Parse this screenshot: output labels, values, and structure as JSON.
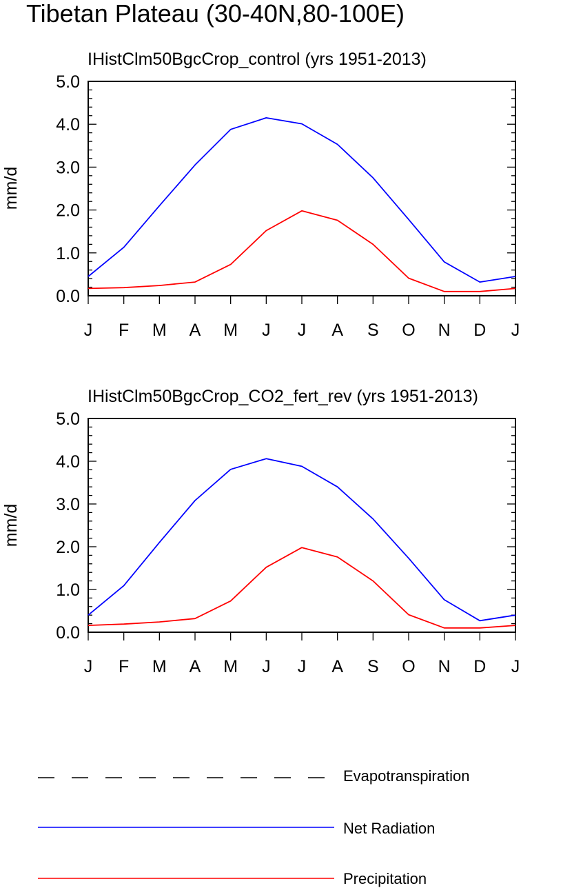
{
  "figure": {
    "title": "Tibetan Plateau (30-40N,80-100E)"
  },
  "legend": [
    {
      "label": "Evapotranspiration",
      "color": "#000000",
      "style": "dashed"
    },
    {
      "label": "Net Radiation",
      "color": "#0000ff",
      "style": "solid"
    },
    {
      "label": "Precipitation",
      "color": "#ff0000",
      "style": "solid"
    }
  ],
  "chart_data": [
    {
      "type": "line",
      "title": "IHistClm50BgcCrop_control (yrs 1951-2013)",
      "ylabel": "mm/d",
      "xlabel": "",
      "ylim": [
        0,
        5
      ],
      "yticks": [
        "0.0",
        "1.0",
        "2.0",
        "3.0",
        "4.0",
        "5.0"
      ],
      "categories": [
        "J",
        "F",
        "M",
        "A",
        "M",
        "J",
        "J",
        "A",
        "S",
        "O",
        "N",
        "D",
        "J"
      ],
      "grid": false,
      "series": [
        {
          "name": "Net Radiation",
          "color": "#0000ff",
          "values": [
            0.45,
            1.13,
            2.1,
            3.05,
            3.88,
            4.15,
            4.01,
            3.53,
            2.75,
            1.78,
            0.79,
            0.32,
            0.45
          ]
        },
        {
          "name": "Precipitation",
          "color": "#ff0000",
          "values": [
            0.17,
            0.19,
            0.24,
            0.32,
            0.73,
            1.52,
            1.98,
            1.76,
            1.2,
            0.41,
            0.1,
            0.1,
            0.17
          ]
        }
      ]
    },
    {
      "type": "line",
      "title": "IHistClm50BgcCrop_CO2_fert_rev (yrs 1951-2013)",
      "ylabel": "mm/d",
      "xlabel": "",
      "ylim": [
        0,
        5
      ],
      "yticks": [
        "0.0",
        "1.0",
        "2.0",
        "3.0",
        "4.0",
        "5.0"
      ],
      "categories": [
        "J",
        "F",
        "M",
        "A",
        "M",
        "J",
        "J",
        "A",
        "S",
        "O",
        "N",
        "D",
        "J"
      ],
      "grid": false,
      "series": [
        {
          "name": "Net Radiation",
          "color": "#0000ff",
          "values": [
            0.4,
            1.09,
            2.1,
            3.08,
            3.81,
            4.06,
            3.88,
            3.4,
            2.65,
            1.73,
            0.76,
            0.27,
            0.4
          ]
        },
        {
          "name": "Precipitation",
          "color": "#ff0000",
          "values": [
            0.16,
            0.19,
            0.24,
            0.32,
            0.73,
            1.52,
            1.98,
            1.76,
            1.2,
            0.41,
            0.1,
            0.1,
            0.16
          ]
        }
      ]
    }
  ]
}
